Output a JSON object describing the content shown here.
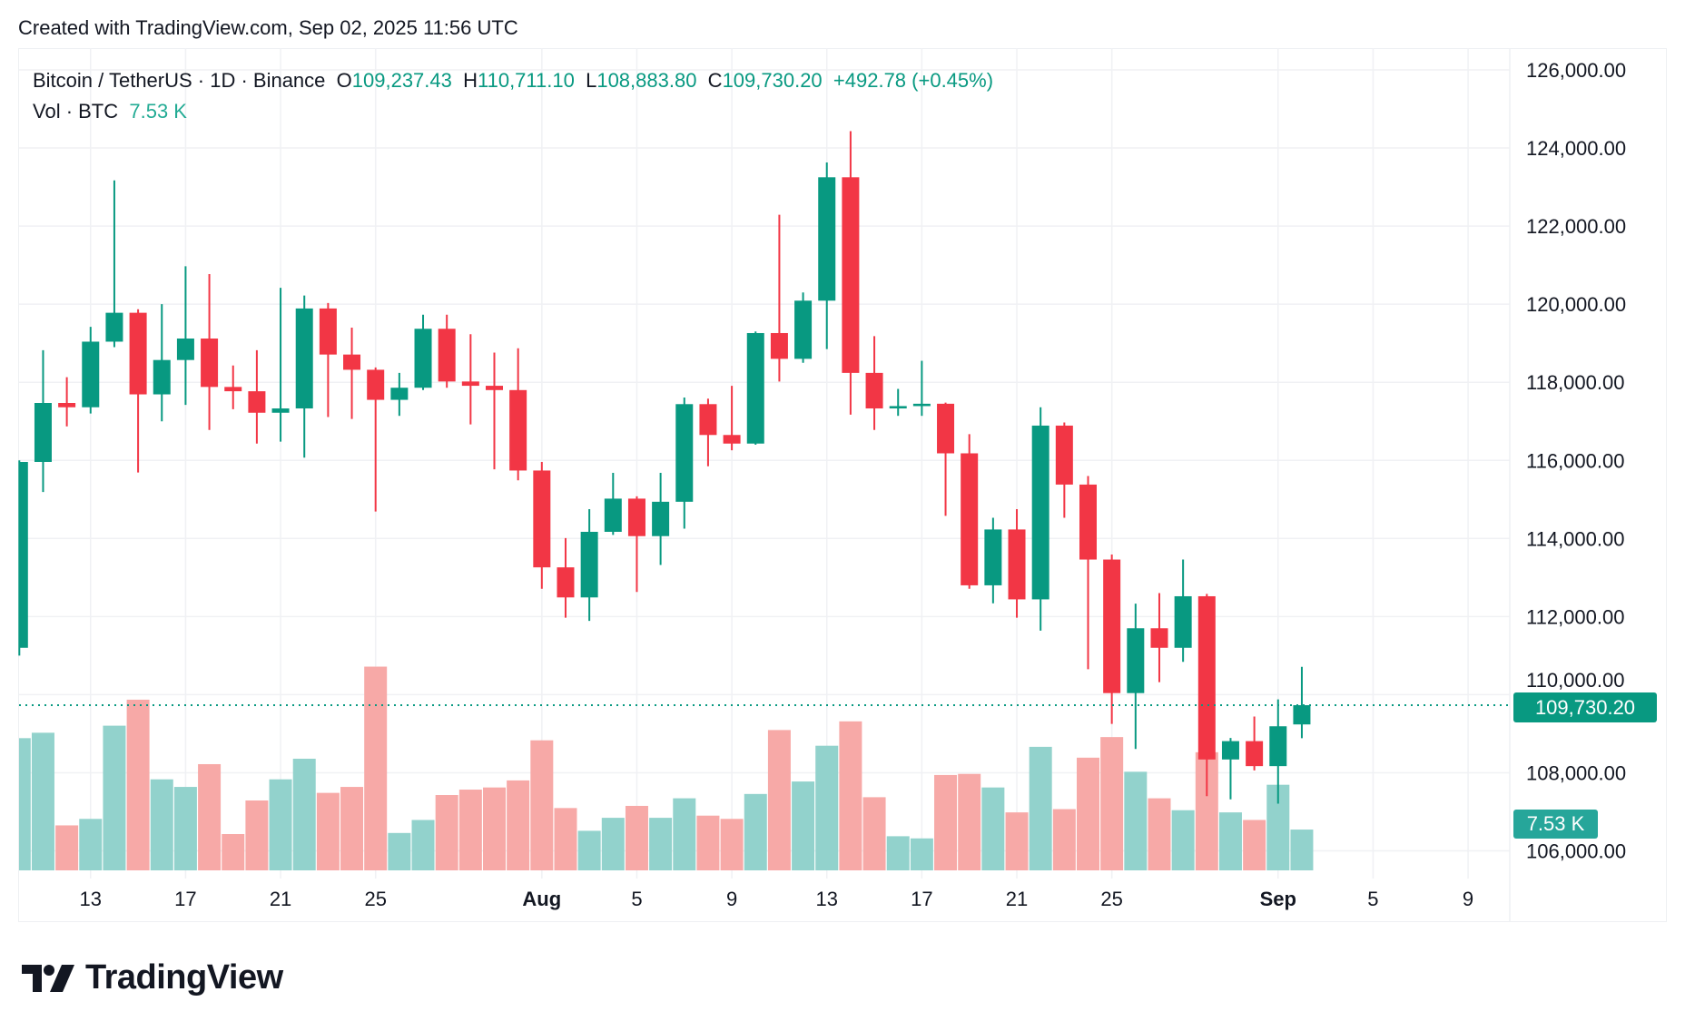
{
  "created_line": "Created with TradingView.com, Sep 02, 2025 11:56 UTC",
  "legend": {
    "symbol": "Bitcoin / TetherUS · 1D · Binance",
    "o_label": "O",
    "o": "109,237.43",
    "h_label": "H",
    "h": "110,711.10",
    "l_label": "L",
    "l": "108,883.80",
    "c_label": "C",
    "c": "109,730.20",
    "change": "+492.78 (+0.45%)",
    "vol_label": "Vol · BTC",
    "vol": "7.53 K"
  },
  "last_price_label": "109,730.20",
  "last_volume_label": "7.53 K",
  "logo_text": "TradingView",
  "colors": {
    "up": "#089981",
    "down": "#f23645",
    "vol_up": "#92d2cc",
    "vol_down": "#f7a9a7",
    "grid": "#f0f1f4"
  },
  "chart_data": {
    "type": "candlestick",
    "title": "",
    "price_ticks": [
      "126,000.00",
      "124,000.00",
      "122,000.00",
      "120,000.00",
      "118,000.00",
      "116,000.00",
      "114,000.00",
      "112,000.00",
      "110,000.00",
      "108,000.00",
      "106,000.00"
    ],
    "price_tick_values": [
      126000,
      124000,
      122000,
      120000,
      118000,
      116000,
      114000,
      112000,
      110000,
      108000,
      106000
    ],
    "ylim": [
      106000,
      126000
    ],
    "x_ticks": [
      {
        "label": "13",
        "date": "2025-07-13",
        "bold": false
      },
      {
        "label": "17",
        "date": "2025-07-17",
        "bold": false
      },
      {
        "label": "21",
        "date": "2025-07-21",
        "bold": false
      },
      {
        "label": "25",
        "date": "2025-07-25",
        "bold": false
      },
      {
        "label": "Aug",
        "date": "2025-08-01",
        "bold": true
      },
      {
        "label": "5",
        "date": "2025-08-05",
        "bold": false
      },
      {
        "label": "9",
        "date": "2025-08-09",
        "bold": false
      },
      {
        "label": "13",
        "date": "2025-08-13",
        "bold": false
      },
      {
        "label": "17",
        "date": "2025-08-17",
        "bold": false
      },
      {
        "label": "21",
        "date": "2025-08-21",
        "bold": false
      },
      {
        "label": "25",
        "date": "2025-08-25",
        "bold": false
      },
      {
        "label": "Sep",
        "date": "2025-09-01",
        "bold": true
      },
      {
        "label": "5",
        "date": "2025-09-05",
        "bold": false
      },
      {
        "label": "9",
        "date": "2025-09-09",
        "bold": false
      }
    ],
    "first_date": "2025-07-10",
    "last_price": 109730.2,
    "ohlc": [
      [
        111200,
        116000,
        111000,
        115960
      ],
      [
        115960,
        118820,
        115190,
        117470
      ],
      [
        117470,
        118130,
        116870,
        117360
      ],
      [
        117360,
        119420,
        117200,
        119040
      ],
      [
        119040,
        123170,
        118900,
        119780
      ],
      [
        119780,
        119870,
        115690,
        117690
      ],
      [
        117690,
        120000,
        117000,
        118570
      ],
      [
        118570,
        120970,
        117420,
        119120
      ],
      [
        119120,
        120770,
        116780,
        117880
      ],
      [
        117880,
        118430,
        117310,
        117770
      ],
      [
        117770,
        118820,
        116430,
        117220
      ],
      [
        117220,
        120420,
        116480,
        117330
      ],
      [
        117330,
        120220,
        116070,
        119890
      ],
      [
        119890,
        120030,
        117110,
        118710
      ],
      [
        118710,
        119400,
        117060,
        118320
      ],
      [
        118320,
        118380,
        114690,
        117550
      ],
      [
        117550,
        118240,
        117140,
        117860
      ],
      [
        117860,
        119730,
        117800,
        119370
      ],
      [
        119370,
        119730,
        117860,
        118020
      ],
      [
        118020,
        119230,
        116920,
        117910
      ],
      [
        117910,
        118760,
        115770,
        117800
      ],
      [
        117800,
        118870,
        115490,
        115740
      ],
      [
        115740,
        115960,
        112710,
        113260
      ],
      [
        113260,
        114010,
        111970,
        112490
      ],
      [
        112490,
        114750,
        111890,
        114170
      ],
      [
        114170,
        115680,
        114090,
        115020
      ],
      [
        115020,
        115080,
        112630,
        114060
      ],
      [
        114060,
        115680,
        113320,
        114940
      ],
      [
        114940,
        117610,
        114250,
        117440
      ],
      [
        117440,
        117580,
        115850,
        116650
      ],
      [
        116650,
        117910,
        116260,
        116430
      ],
      [
        116430,
        119300,
        116400,
        119260
      ],
      [
        119260,
        122290,
        118020,
        118600
      ],
      [
        118600,
        120300,
        118500,
        120090
      ],
      [
        120090,
        123630,
        118850,
        123250
      ],
      [
        123250,
        124430,
        117170,
        118240
      ],
      [
        118240,
        119180,
        116780,
        117330
      ],
      [
        117330,
        117830,
        117140,
        117390
      ],
      [
        117390,
        118550,
        117140,
        117450
      ],
      [
        117450,
        117480,
        114580,
        116180
      ],
      [
        116180,
        116670,
        112710,
        112800
      ],
      [
        112800,
        114530,
        112340,
        114230
      ],
      [
        114230,
        114750,
        111970,
        112440
      ],
      [
        112440,
        117360,
        111640,
        116890
      ],
      [
        116890,
        116970,
        114530,
        115380
      ],
      [
        115380,
        115600,
        110650,
        113460
      ],
      [
        113460,
        113590,
        109250,
        110040
      ],
      [
        110040,
        112330,
        108610,
        111700
      ],
      [
        111700,
        112600,
        110320,
        111200
      ],
      [
        111200,
        113460,
        110840,
        112520
      ],
      [
        112520,
        112580,
        107400,
        108340
      ],
      [
        108340,
        108890,
        107320,
        108810
      ],
      [
        108810,
        109440,
        108060,
        108170
      ],
      [
        108170,
        109880,
        107210,
        109190
      ],
      [
        109237.43,
        110711.1,
        108883.8,
        109730.2
      ]
    ],
    "volume_k": [
      24.4,
      25.4,
      8.3,
      9.5,
      26.7,
      31.5,
      16.8,
      15.4,
      19.6,
      6.7,
      12.9,
      16.8,
      20.6,
      14.3,
      15.4,
      37.6,
      6.9,
      9.3,
      13.9,
      14.9,
      15.3,
      16.6,
      24.0,
      11.5,
      7.3,
      9.7,
      11.9,
      9.7,
      13.3,
      10.1,
      9.5,
      14.1,
      25.9,
      16.4,
      23.0,
      27.5,
      13.5,
      6.3,
      5.9,
      17.6,
      17.8,
      15.3,
      10.7,
      22.8,
      11.3,
      20.8,
      24.6,
      18.2,
      13.3,
      11.1,
      21.8,
      10.7,
      9.3,
      15.8,
      7.53
    ]
  }
}
